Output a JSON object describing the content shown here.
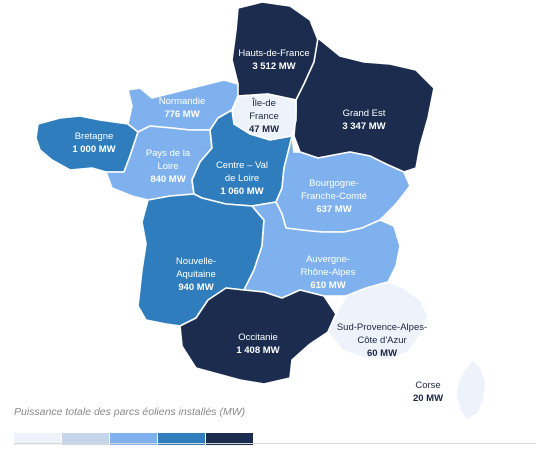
{
  "colors": {
    "level1": "#eef2fb",
    "level2": "#c5d5eb",
    "level3": "#7fb1ef",
    "level4": "#2f7dbd",
    "level5": "#1b2c4f"
  },
  "regions": {
    "hdf": {
      "name": "Hauts-de-France",
      "value": "3 512 MW",
      "level": "level5"
    },
    "ge": {
      "name": "Grand Est",
      "value": "3 347 MW",
      "level": "level5"
    },
    "idf": {
      "name_line1": "Île-de",
      "name_line2": "France",
      "value": "47 MW",
      "level": "level1"
    },
    "nor": {
      "name": "Normandie",
      "value": "776 MW",
      "level": "level3"
    },
    "bre": {
      "name": "Bretagne",
      "value": "1 000 MW",
      "level": "level4"
    },
    "pdl": {
      "name_line1": "Pays de la",
      "name_line2": "Loire",
      "value": "840 MW",
      "level": "level3"
    },
    "cvl": {
      "name_line1": "Centre – Val",
      "name_line2": "de Loire",
      "value": "1 060 MW",
      "level": "level4"
    },
    "bfc": {
      "name_line1": "Bourgogne-",
      "name_line2": "Franche-Comté",
      "value": "637 MW",
      "level": "level3"
    },
    "na": {
      "name_line1": "Nouvelle-",
      "name_line2": "Aquitaine",
      "value": "940 MW",
      "level": "level4"
    },
    "ara": {
      "name_line1": "Auvergne-",
      "name_line2": "Rhône-Alpes",
      "value": "610 MW",
      "level": "level3"
    },
    "occ": {
      "name": "Occitanie",
      "value": "1 408 MW",
      "level": "level5"
    },
    "paca": {
      "name_line1": "Sud-Provence-Alpes-",
      "name_line2": "Côte d'Azur",
      "value": "60 MW",
      "level": "level1"
    },
    "cor": {
      "name": "Corse",
      "value": "20 MW",
      "level": "level1"
    }
  },
  "legend": {
    "title": "Puissance totale des parcs éoliens installés (MW)",
    "swatches": [
      "level1",
      "level2",
      "level3",
      "level4",
      "level5"
    ]
  }
}
